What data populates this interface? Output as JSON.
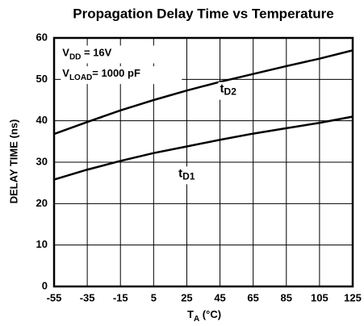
{
  "chart_data": {
    "type": "line",
    "title": "Propagation Delay Time vs Temperature",
    "x_label": {
      "main": "T",
      "sub": "A",
      "rest": " (°C)"
    },
    "y_label": "DELAY TIME (ns)",
    "annotations": [
      {
        "main": "V",
        "sub": "DD",
        "rest": " = 16V"
      },
      {
        "main": "V",
        "sub": "LOAD",
        "rest": "= 1000 pF"
      }
    ],
    "x": [
      -55,
      -35,
      -15,
      5,
      25,
      45,
      65,
      85,
      105,
      125
    ],
    "series": [
      {
        "name": "t",
        "name_sub": "D2",
        "color": "#000000",
        "values": [
          36.8,
          39.7,
          42.5,
          45,
          47.3,
          49.4,
          51.3,
          53.2,
          55,
          57
        ]
      },
      {
        "name": "t",
        "name_sub": "D1",
        "color": "#000000",
        "values": [
          25.8,
          28.2,
          30.3,
          32.2,
          33.8,
          35.4,
          36.9,
          38.2,
          39.5,
          41
        ]
      }
    ],
    "xlim": [
      -55,
      125
    ],
    "xticks": [
      -55,
      -35,
      -15,
      5,
      25,
      45,
      65,
      85,
      105,
      125
    ],
    "ylim": [
      0,
      60
    ],
    "yticks": [
      0,
      10,
      20,
      30,
      40,
      50,
      60
    ],
    "grid": true
  }
}
